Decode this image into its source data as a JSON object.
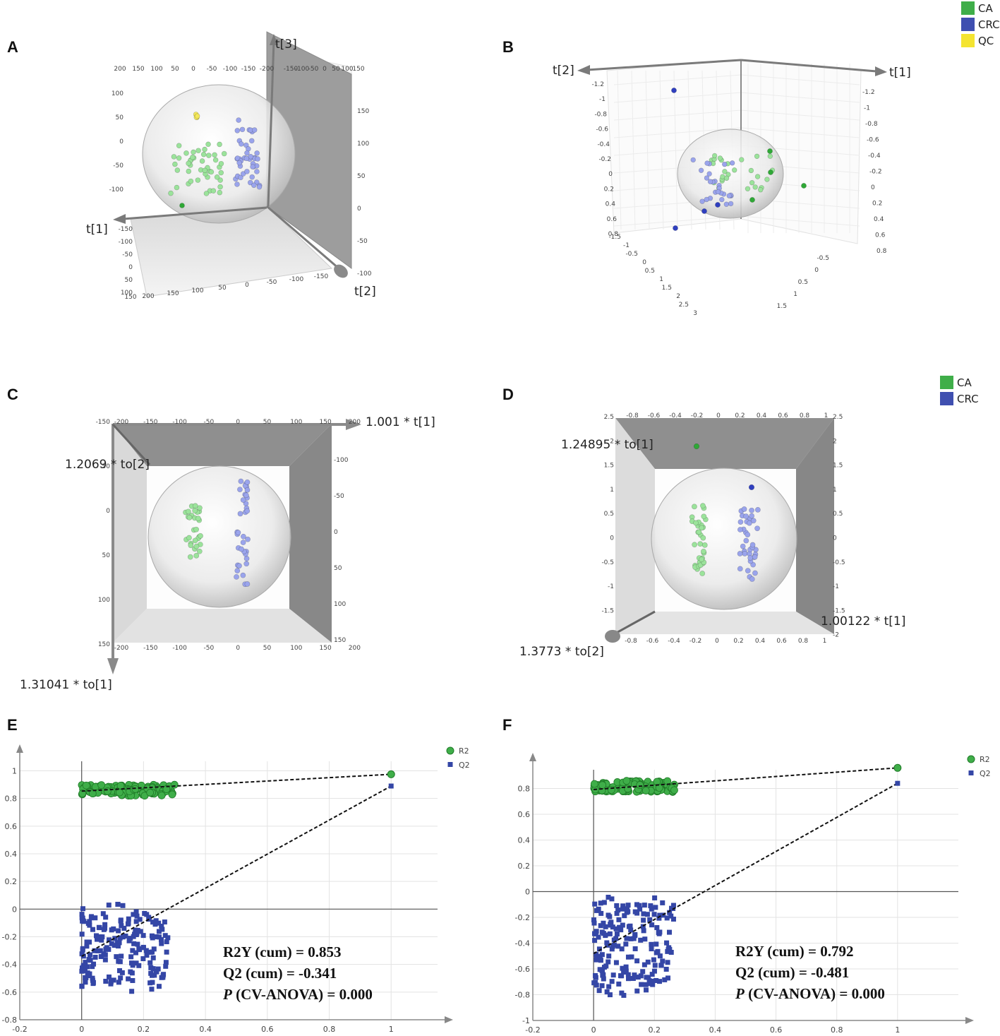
{
  "panels": {
    "A": "A",
    "B": "B",
    "C": "C",
    "D": "D",
    "E": "E",
    "F": "F"
  },
  "legend_top": [
    {
      "label": "CA",
      "color": "#3fae49"
    },
    {
      "label": "CRC",
      "color": "#3f4fb0"
    },
    {
      "label": "QC",
      "color": "#f4e431"
    }
  ],
  "legend_mid": [
    {
      "label": "CA",
      "color": "#3fae49"
    },
    {
      "label": "CRC",
      "color": "#3f4fb0"
    }
  ],
  "colors": {
    "ca_light": "#9be39b",
    "crc_light": "#9aa4ec",
    "qc": "#f4e85a",
    "ca_dark": "#2fa836",
    "crc_dark": "#2f3fbf",
    "r2": "#3fae49",
    "q2": "#3446a6",
    "grid": "#e3e3e3",
    "axis": "#888888"
  },
  "axis_labels": {
    "A": {
      "t1": "t[1]",
      "t2": "t[2]",
      "t3": "t[3]"
    },
    "B": {
      "t1": "t[1]",
      "t2": "t[2]"
    },
    "C": {
      "x": "1.001 * t[1]",
      "y": "1.2069 * to[2]",
      "z": "1.31041 * to[1]"
    },
    "D": {
      "a": "1.24895 * to[1]",
      "b": "1.00122 * t[1]",
      "c": "1.3773 * to[2]"
    }
  },
  "chart_data": [
    {
      "panel": "A",
      "type": "scatter",
      "title": "",
      "axes": [
        "t[1]",
        "t[2]",
        "t[3]"
      ],
      "ticks_top": [
        "200",
        "150",
        "100",
        "50",
        "0",
        "-50",
        "-100",
        "-150",
        "-200",
        "-150",
        "-100",
        "-50",
        "0",
        "50",
        "100",
        "150"
      ],
      "ticks_right": [
        "150",
        "100",
        "50",
        "0",
        "-50",
        "-100"
      ],
      "ticks_bottom": [
        "150",
        "200",
        "150",
        "100",
        "50",
        "0",
        "-50",
        "-100",
        "-150"
      ],
      "ticks_left": [
        "100",
        "50",
        "0",
        "-50",
        "-100",
        "-150",
        "-100",
        "-50",
        "0",
        "50",
        "100"
      ],
      "groups": {
        "CA": 46,
        "CRC": 44,
        "QC": 4
      }
    },
    {
      "panel": "B",
      "type": "scatter",
      "title": "",
      "axes": [
        "t[1]",
        "t[2]"
      ],
      "ticks_left": [
        "-1.2",
        "-1",
        "-0.8",
        "-0.6",
        "-0.4",
        "-0.2",
        "0",
        "0.2",
        "0.4",
        "0.6",
        "0.8"
      ],
      "ticks_right": [
        "-1.2",
        "-1",
        "-0.8",
        "-0.6",
        "-0.4",
        "-0.2",
        "0",
        "0.2",
        "0.4",
        "0.6",
        "0.8"
      ],
      "ticks_bottom_left": [
        "-1.5",
        "-1",
        "-0.5",
        "0",
        "0.5",
        "1",
        "1.5",
        "2",
        "2.5",
        "3"
      ],
      "ticks_bottom_right": [
        "-0.5",
        "0",
        "0.5",
        "1",
        "1.5"
      ],
      "groups": {
        "CA": 34,
        "CRC": 32
      }
    },
    {
      "panel": "C",
      "type": "scatter",
      "axes": [
        "1.001 * t[1]",
        "1.2069 * to[2]",
        "1.31041 * to[1]"
      ],
      "ticks_x": [
        "-200",
        "-150",
        "-100",
        "-50",
        "0",
        "50",
        "100",
        "150",
        "200"
      ],
      "ticks_y_right": [
        "-100",
        "-50",
        "0",
        "50",
        "100",
        "150"
      ],
      "ticks_y_left": [
        "-150",
        "-50",
        "0",
        "50",
        "100",
        "150"
      ],
      "groups": {
        "CA": 30,
        "CRC": 36
      }
    },
    {
      "panel": "D",
      "type": "scatter",
      "axes": [
        "1.24895 * to[1]",
        "1.00122 * t[1]",
        "1.3773 * to[2]"
      ],
      "ticks_x": [
        "-0.8",
        "-0.6",
        "-0.4",
        "-0.2",
        "0",
        "0.2",
        "0.4",
        "0.6",
        "0.8",
        "1"
      ],
      "ticks_y_right": [
        "2.5",
        "2",
        "1.5",
        "1",
        "0.5",
        "0",
        "-0.5",
        "-1",
        "-1.5",
        "-2"
      ],
      "ticks_y_left": [
        "2.5",
        "2",
        "1.5",
        "1",
        "0.5",
        "0",
        "-0.5",
        "-1",
        "-1.5"
      ],
      "groups": {
        "CA": 36,
        "CRC": 38
      }
    },
    {
      "panel": "E",
      "type": "scatter",
      "title": "",
      "xlabel": "",
      "ylabel": "",
      "xlim": [
        -0.2,
        1.15
      ],
      "ylim": [
        -0.8,
        1.12
      ],
      "xticks": [
        -0.2,
        0,
        0.2,
        0.4,
        0.6,
        0.8,
        1
      ],
      "yticks": [
        -0.8,
        -0.6,
        -0.4,
        -0.2,
        0,
        0.2,
        0.4,
        0.6,
        0.8,
        1
      ],
      "series": [
        {
          "name": "R2",
          "marker": "circle",
          "cluster_x": [
            0,
            0.3
          ],
          "cluster_y": [
            0.82,
            0.9
          ],
          "endpoint": [
            1,
            0.975
          ],
          "intercept": 0.853
        },
        {
          "name": "Q2",
          "marker": "square",
          "cluster_x": [
            0,
            0.28
          ],
          "cluster_y": [
            -0.6,
            0.07
          ],
          "endpoint": [
            1,
            0.89
          ],
          "intercept": -0.341
        }
      ],
      "stats": {
        "r2y": "R2Y (cum) = 0.853",
        "q2": "Q2 (cum) = -0.341",
        "p_italic": "P",
        "p_rest": " (CV-ANOVA) = 0.000"
      }
    },
    {
      "panel": "F",
      "type": "scatter",
      "title": "",
      "xlabel": "",
      "ylabel": "",
      "xlim": [
        -0.2,
        1.2
      ],
      "ylim": [
        -1.0,
        1.0
      ],
      "xticks": [
        -0.2,
        0,
        0.2,
        0.4,
        0.6,
        0.8,
        1
      ],
      "yticks": [
        -1,
        -0.8,
        -0.6,
        -0.4,
        -0.2,
        0,
        0.2,
        0.4,
        0.6,
        0.8
      ],
      "series": [
        {
          "name": "R2",
          "marker": "circle",
          "cluster_x": [
            0,
            0.27
          ],
          "cluster_y": [
            0.77,
            0.86
          ],
          "endpoint": [
            1,
            0.96
          ],
          "intercept": 0.792
        },
        {
          "name": "Q2",
          "marker": "square",
          "cluster_x": [
            0,
            0.27
          ],
          "cluster_y": [
            -0.83,
            0.0
          ],
          "endpoint": [
            1,
            0.84
          ],
          "intercept": -0.481
        }
      ],
      "stats": {
        "r2y": "R2Y (cum) = 0.792",
        "q2": "Q2 (cum) = -0.481",
        "p_italic": "P",
        "p_rest": " (CV-ANOVA) = 0.000"
      }
    }
  ]
}
